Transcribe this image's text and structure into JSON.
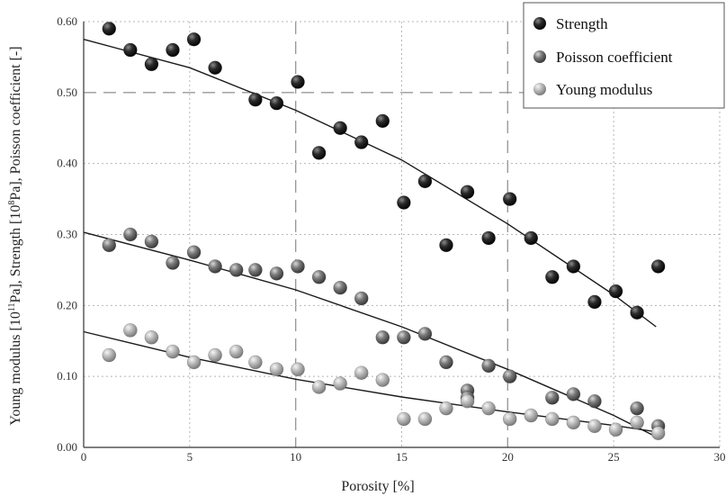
{
  "chart_data": {
    "type": "scatter",
    "title": "",
    "xlabel": "Porosity [%]",
    "ylabel": {
      "p1": "Young modulus [10",
      "e1": "11",
      "p2": "Pa], Strength [10",
      "e2": "8",
      "p3": "Pa], Poisson coefficient [-]"
    },
    "xlim": [
      0,
      30
    ],
    "ylim": [
      0,
      0.6
    ],
    "x_ticks": [
      "0",
      "5",
      "10",
      "15",
      "20",
      "25",
      "30"
    ],
    "y_ticks": [
      "0.00",
      "0.10",
      "0.20",
      "0.30",
      "0.40",
      "0.50",
      "0.60"
    ],
    "grid": true,
    "legend_position": "top-right",
    "colors": {
      "strength": "#1a1a1a",
      "poisson": "#6e6e6e",
      "young": "#b4b4b4",
      "fit": "#1a1a1a"
    },
    "series": [
      {
        "name": "Strength",
        "points": [
          [
            1.2,
            0.59
          ],
          [
            2.2,
            0.56
          ],
          [
            3.2,
            0.54
          ],
          [
            4.2,
            0.56
          ],
          [
            5.2,
            0.575
          ],
          [
            6.2,
            0.535
          ],
          [
            8.1,
            0.49
          ],
          [
            9.1,
            0.485
          ],
          [
            10.1,
            0.515
          ],
          [
            11.1,
            0.415
          ],
          [
            12.1,
            0.45
          ],
          [
            13.1,
            0.43
          ],
          [
            14.1,
            0.46
          ],
          [
            15.1,
            0.345
          ],
          [
            16.1,
            0.375
          ],
          [
            17.1,
            0.285
          ],
          [
            18.1,
            0.36
          ],
          [
            19.1,
            0.295
          ],
          [
            20.1,
            0.35
          ],
          [
            21.1,
            0.295
          ],
          [
            22.1,
            0.24
          ],
          [
            23.1,
            0.255
          ],
          [
            24.1,
            0.205
          ],
          [
            25.1,
            0.22
          ],
          [
            26.1,
            0.19
          ],
          [
            27.1,
            0.255
          ]
        ],
        "fit": [
          [
            0,
            0.575
          ],
          [
            5,
            0.535
          ],
          [
            10,
            0.475
          ],
          [
            15,
            0.405
          ],
          [
            20,
            0.315
          ],
          [
            25,
            0.215
          ],
          [
            27,
            0.17
          ]
        ]
      },
      {
        "name": "Poisson coefficient",
        "points": [
          [
            1.2,
            0.285
          ],
          [
            2.2,
            0.3
          ],
          [
            3.2,
            0.29
          ],
          [
            4.2,
            0.26
          ],
          [
            5.2,
            0.275
          ],
          [
            6.2,
            0.255
          ],
          [
            7.2,
            0.25
          ],
          [
            8.1,
            0.25
          ],
          [
            9.1,
            0.245
          ],
          [
            10.1,
            0.255
          ],
          [
            11.1,
            0.24
          ],
          [
            12.1,
            0.225
          ],
          [
            13.1,
            0.21
          ],
          [
            14.1,
            0.155
          ],
          [
            15.1,
            0.155
          ],
          [
            16.1,
            0.16
          ],
          [
            17.1,
            0.12
          ],
          [
            18.1,
            0.08
          ],
          [
            18.1,
            0.07
          ],
          [
            19.1,
            0.115
          ],
          [
            20.1,
            0.1
          ],
          [
            22.1,
            0.07
          ],
          [
            23.1,
            0.075
          ],
          [
            24.1,
            0.065
          ],
          [
            26.1,
            0.055
          ],
          [
            27.1,
            0.03
          ]
        ],
        "fit": [
          [
            0,
            0.303
          ],
          [
            5,
            0.264
          ],
          [
            10,
            0.222
          ],
          [
            15,
            0.17
          ],
          [
            20,
            0.11
          ],
          [
            25,
            0.045
          ],
          [
            27,
            0.015
          ]
        ]
      },
      {
        "name": "Young modulus",
        "points": [
          [
            1.2,
            0.13
          ],
          [
            2.2,
            0.165
          ],
          [
            3.2,
            0.155
          ],
          [
            4.2,
            0.135
          ],
          [
            5.2,
            0.12
          ],
          [
            6.2,
            0.13
          ],
          [
            7.2,
            0.135
          ],
          [
            8.1,
            0.12
          ],
          [
            9.1,
            0.11
          ],
          [
            10.1,
            0.11
          ],
          [
            11.1,
            0.085
          ],
          [
            12.1,
            0.09
          ],
          [
            13.1,
            0.105
          ],
          [
            14.1,
            0.095
          ],
          [
            15.1,
            0.04
          ],
          [
            16.1,
            0.04
          ],
          [
            17.1,
            0.055
          ],
          [
            18.1,
            0.065
          ],
          [
            19.1,
            0.055
          ],
          [
            20.1,
            0.04
          ],
          [
            21.1,
            0.045
          ],
          [
            22.1,
            0.04
          ],
          [
            23.1,
            0.035
          ],
          [
            24.1,
            0.03
          ],
          [
            25.1,
            0.025
          ],
          [
            26.1,
            0.035
          ],
          [
            27.1,
            0.02
          ]
        ],
        "fit": [
          [
            0,
            0.163
          ],
          [
            5,
            0.127
          ],
          [
            10,
            0.096
          ],
          [
            15,
            0.071
          ],
          [
            20,
            0.05
          ],
          [
            25,
            0.031
          ],
          [
            27,
            0.022
          ]
        ]
      }
    ]
  }
}
